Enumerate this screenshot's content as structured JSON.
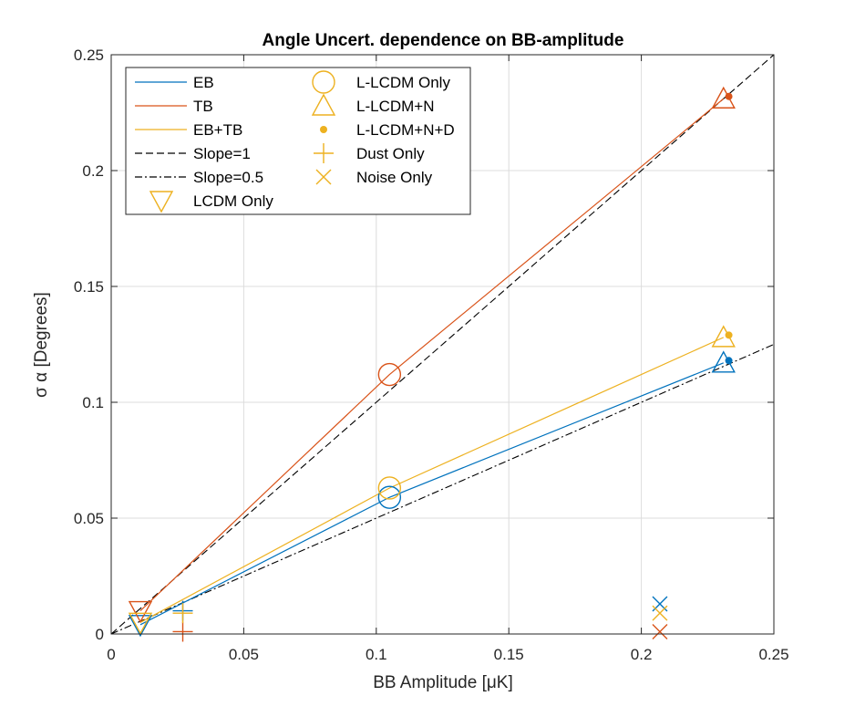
{
  "chart_data": {
    "type": "scatter",
    "title": "Angle Uncert. dependence on BB-amplitude",
    "xlabel": "BB Amplitude [μK]",
    "ylabel": "σ α [Degrees]",
    "xlim": [
      0,
      0.25
    ],
    "ylim": [
      0,
      0.25
    ],
    "xticks": [
      0,
      0.05,
      0.1,
      0.15,
      0.2,
      0.25
    ],
    "xticklabels": [
      "0",
      "0.05",
      "0.1",
      "0.15",
      "0.2",
      "0.25"
    ],
    "yticks": [
      0,
      0.05,
      0.1,
      0.15,
      0.2,
      0.25
    ],
    "yticklabels": [
      "0",
      "0.05",
      "0.1",
      "0.15",
      "0.2",
      "0.25"
    ],
    "grid": true,
    "legend_position": "top-left",
    "colors": {
      "EB": "#0072BD",
      "TB": "#D95319",
      "EB+TB": "#EDB120",
      "reference": "#000000"
    },
    "legend": [
      {
        "label": "EB",
        "kind": "line",
        "color": "#0072BD",
        "dash": "solid"
      },
      {
        "label": "TB",
        "kind": "line",
        "color": "#D95319",
        "dash": "solid"
      },
      {
        "label": "EB+TB",
        "kind": "line",
        "color": "#EDB120",
        "dash": "solid"
      },
      {
        "label": "Slope=1",
        "kind": "line",
        "color": "#000000",
        "dash": "dashed"
      },
      {
        "label": "Slope=0.5",
        "kind": "line",
        "color": "#000000",
        "dash": "dashdot"
      },
      {
        "label": "LCDM Only",
        "kind": "marker",
        "marker": "triangle-down",
        "color": "#EDB120"
      },
      {
        "label": "L-LCDM Only",
        "kind": "marker",
        "marker": "circle",
        "color": "#EDB120"
      },
      {
        "label": "L-LCDM+N",
        "kind": "marker",
        "marker": "triangle-up",
        "color": "#EDB120"
      },
      {
        "label": "L-LCDM+N+D",
        "kind": "marker",
        "marker": "dot",
        "color": "#EDB120"
      },
      {
        "label": "Dust Only",
        "kind": "marker",
        "marker": "plus",
        "color": "#EDB120"
      },
      {
        "label": "Noise Only",
        "kind": "marker",
        "marker": "x",
        "color": "#EDB120"
      }
    ],
    "reference_lines": [
      {
        "name": "Slope=1",
        "slope": 1,
        "dash": "dashed"
      },
      {
        "name": "Slope=0.5",
        "slope": 0.5,
        "dash": "dashdot"
      }
    ],
    "series": [
      {
        "name": "EB",
        "color": "#0072BD",
        "line": [
          [
            0.011,
            0.004
          ],
          [
            0.105,
            0.059
          ],
          [
            0.231,
            0.117
          ]
        ],
        "points": {
          "LCDM Only": [
            0.011,
            0.004
          ],
          "L-LCDM Only": [
            0.105,
            0.059
          ],
          "L-LCDM+N": [
            0.231,
            0.117
          ],
          "L-LCDM+N+D": [
            0.233,
            0.118
          ],
          "Dust Only": [
            0.027,
            0.01
          ],
          "Noise Only": [
            0.207,
            0.013
          ]
        }
      },
      {
        "name": "TB",
        "color": "#D95319",
        "line": [
          [
            0.011,
            0.01
          ],
          [
            0.105,
            0.112
          ],
          [
            0.231,
            0.231
          ]
        ],
        "points": {
          "LCDM Only": [
            0.011,
            0.01
          ],
          "L-LCDM Only": [
            0.105,
            0.112
          ],
          "L-LCDM+N": [
            0.231,
            0.231
          ],
          "L-LCDM+N+D": [
            0.233,
            0.232
          ],
          "Dust Only": [
            0.027,
            0.001
          ],
          "Noise Only": [
            0.207,
            0.001
          ]
        }
      },
      {
        "name": "EB+TB",
        "color": "#EDB120",
        "line": [
          [
            0.011,
            0.005
          ],
          [
            0.105,
            0.063
          ],
          [
            0.231,
            0.128
          ]
        ],
        "points": {
          "LCDM Only": [
            0.011,
            0.005
          ],
          "L-LCDM Only": [
            0.105,
            0.063
          ],
          "L-LCDM+N": [
            0.231,
            0.128
          ],
          "L-LCDM+N+D": [
            0.233,
            0.129
          ],
          "Dust Only": [
            0.027,
            0.009
          ],
          "Noise Only": [
            0.207,
            0.009
          ]
        }
      }
    ]
  }
}
